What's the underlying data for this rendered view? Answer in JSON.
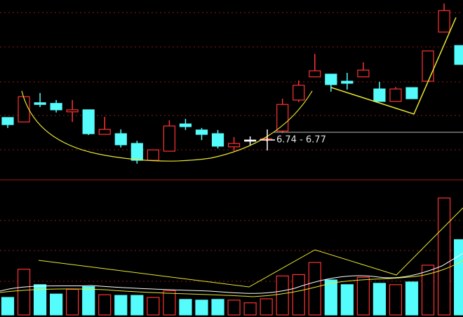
{
  "chart_data": [
    {
      "type": "candlestick",
      "open": [
        6.811,
        6.798,
        6.855,
        6.853,
        6.828,
        6.834,
        6.761,
        6.763,
        6.734,
        6.684,
        6.711,
        6.792,
        6.774,
        6.763,
        6.724,
        6.744,
        6.746,
        6.771,
        6.863,
        6.932,
        6.94,
        6.919,
        6.932,
        6.896,
        6.859,
        6.9,
        6.919,
        7.065,
        7.025
      ],
      "high": [
        6.811,
        6.873,
        6.884,
        6.863,
        6.863,
        6.834,
        6.813,
        6.776,
        6.742,
        6.715,
        6.803,
        6.807,
        6.78,
        6.774,
        6.753,
        6.755,
        6.753,
        6.867,
        6.921,
        7.0,
        6.94,
        6.944,
        6.975,
        6.917,
        6.902,
        6.9,
        7.009,
        7.15,
        7.025
      ],
      "low": [
        6.78,
        6.798,
        6.842,
        6.826,
        6.798,
        6.759,
        6.761,
        6.722,
        6.674,
        6.684,
        6.711,
        6.774,
        6.744,
        6.719,
        6.711,
        6.728,
        6.74,
        6.765,
        6.857,
        6.932,
        6.888,
        6.894,
        6.932,
        6.859,
        6.859,
        6.867,
        6.919,
        7.065,
        6.969
      ],
      "close": [
        6.79,
        6.873,
        6.85,
        6.834,
        6.834,
        6.763,
        6.776,
        6.73,
        6.684,
        6.715,
        6.786,
        6.784,
        6.761,
        6.726,
        6.734,
        6.744,
        6.748,
        6.85,
        6.907,
        6.95,
        6.909,
        6.913,
        6.952,
        6.859,
        6.896,
        6.867,
        7.009,
        7.129,
        6.969
      ],
      "ylim": [
        6.63,
        7.15
      ],
      "up_color": "#ff3232",
      "down_color": "#54fcfc",
      "flat_color": "#ffffff",
      "crosshair_label": "6.74 - 6.77"
    },
    {
      "type": "bar",
      "values": [
        26,
        68,
        45,
        31,
        38,
        42,
        30,
        29,
        29,
        26,
        36,
        23,
        22,
        23,
        22,
        18,
        24,
        58,
        60,
        78,
        52,
        45,
        56,
        47,
        45,
        49,
        74,
        174,
        112
      ],
      "colors": [
        "#54fcfc",
        "#ff3232",
        "#54fcfc",
        "#54fcfc",
        "#ff3232",
        "#54fcfc",
        "#ff3232",
        "#54fcfc",
        "#54fcfc",
        "#ff3232",
        "#ff3232",
        "#54fcfc",
        "#54fcfc",
        "#54fcfc",
        "#ff3232",
        "#ff3232",
        "#ff3232",
        "#ff3232",
        "#ff3232",
        "#ff3232",
        "#54fcfc",
        "#54fcfc",
        "#ff3232",
        "#54fcfc",
        "#ff3232",
        "#54fcfc",
        "#ff3232",
        "#ff3232",
        "#54fcfc"
      ],
      "ylim": [
        0,
        200
      ]
    }
  ]
}
